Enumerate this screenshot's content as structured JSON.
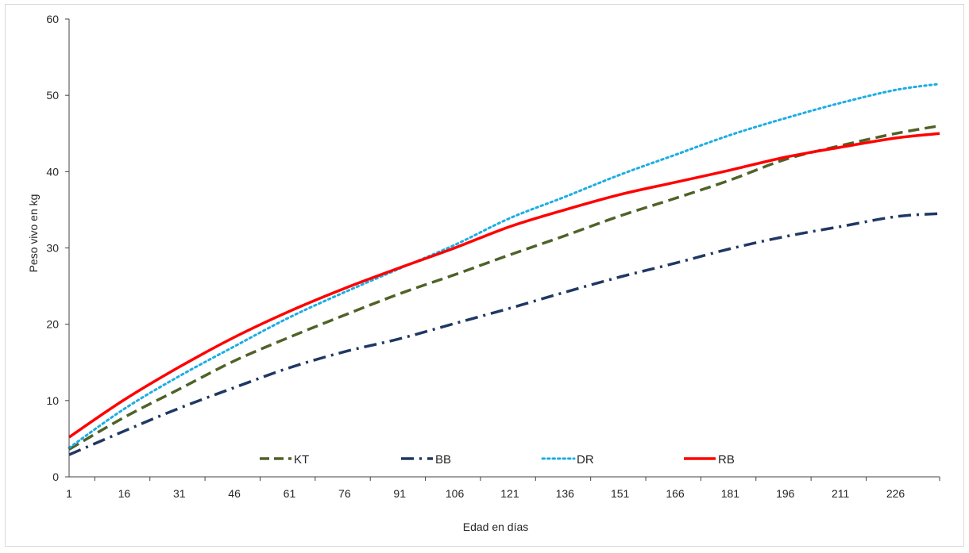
{
  "chart_data": {
    "type": "line",
    "xlabel": "Edad en días",
    "ylabel": "Peso vivo en kg",
    "xlim": [
      1,
      238
    ],
    "ylim": [
      0,
      60
    ],
    "yticks": [
      0,
      10,
      20,
      30,
      40,
      50,
      60
    ],
    "xticks": [
      1,
      16,
      31,
      46,
      61,
      76,
      91,
      106,
      121,
      136,
      151,
      166,
      181,
      196,
      211,
      226
    ],
    "grid": false,
    "legend_position": "bottom-inside",
    "series": [
      {
        "name": "KT",
        "color": "#4f6228",
        "dash": "dash",
        "points": [
          [
            1,
            3.6
          ],
          [
            16,
            7.8
          ],
          [
            31,
            11.5
          ],
          [
            46,
            15.2
          ],
          [
            61,
            18.3
          ],
          [
            76,
            21.2
          ],
          [
            91,
            24.0
          ],
          [
            106,
            26.5
          ],
          [
            121,
            29.1
          ],
          [
            136,
            31.6
          ],
          [
            151,
            34.2
          ],
          [
            166,
            36.5
          ],
          [
            181,
            38.9
          ],
          [
            196,
            41.6
          ],
          [
            211,
            43.4
          ],
          [
            226,
            45.0
          ],
          [
            238,
            46.0
          ]
        ]
      },
      {
        "name": "BB",
        "color": "#1f3864",
        "dash": "dashdot",
        "points": [
          [
            1,
            2.9
          ],
          [
            16,
            6.0
          ],
          [
            31,
            9.0
          ],
          [
            46,
            11.7
          ],
          [
            61,
            14.3
          ],
          [
            76,
            16.4
          ],
          [
            91,
            18.1
          ],
          [
            106,
            20.1
          ],
          [
            121,
            22.1
          ],
          [
            136,
            24.2
          ],
          [
            151,
            26.2
          ],
          [
            166,
            28.0
          ],
          [
            181,
            29.9
          ],
          [
            196,
            31.5
          ],
          [
            211,
            32.8
          ],
          [
            226,
            34.1
          ],
          [
            238,
            34.5
          ]
        ]
      },
      {
        "name": "DR",
        "color": "#1cade4",
        "dash": "dot",
        "points": [
          [
            1,
            3.8
          ],
          [
            16,
            8.9
          ],
          [
            31,
            13.2
          ],
          [
            46,
            17.1
          ],
          [
            61,
            20.9
          ],
          [
            76,
            24.2
          ],
          [
            91,
            27.3
          ],
          [
            106,
            30.4
          ],
          [
            121,
            33.9
          ],
          [
            136,
            36.7
          ],
          [
            151,
            39.6
          ],
          [
            166,
            42.2
          ],
          [
            181,
            44.8
          ],
          [
            196,
            47.0
          ],
          [
            211,
            49.0
          ],
          [
            226,
            50.7
          ],
          [
            238,
            51.5
          ]
        ]
      },
      {
        "name": "RB",
        "color": "#ff0000",
        "dash": "solid",
        "points": [
          [
            1,
            5.2
          ],
          [
            16,
            10.1
          ],
          [
            31,
            14.4
          ],
          [
            46,
            18.3
          ],
          [
            61,
            21.7
          ],
          [
            76,
            24.7
          ],
          [
            91,
            27.4
          ],
          [
            106,
            30.0
          ],
          [
            121,
            32.8
          ],
          [
            136,
            35.0
          ],
          [
            151,
            37.0
          ],
          [
            166,
            38.6
          ],
          [
            181,
            40.2
          ],
          [
            196,
            41.9
          ],
          [
            211,
            43.2
          ],
          [
            226,
            44.4
          ],
          [
            238,
            45.0
          ]
        ]
      }
    ]
  }
}
